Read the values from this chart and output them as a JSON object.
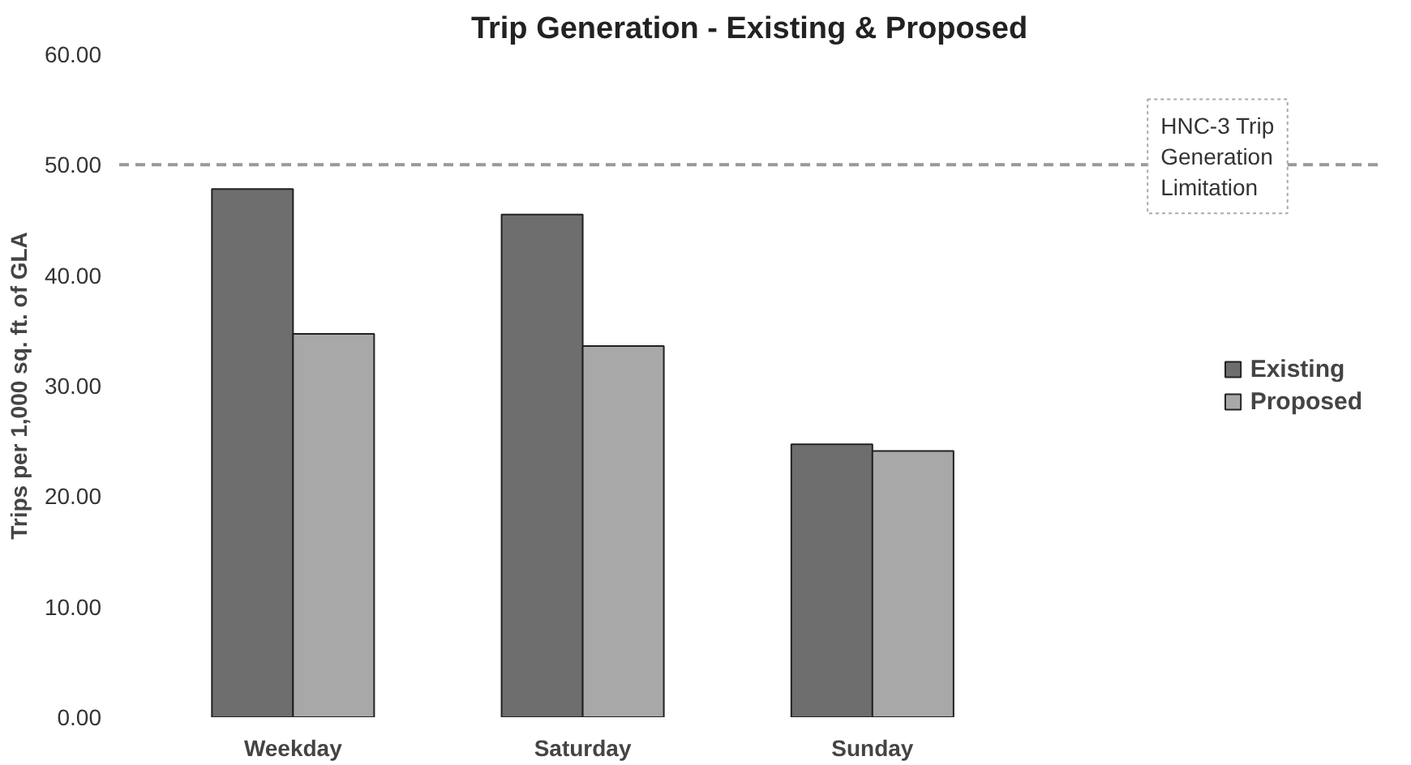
{
  "chart_data": {
    "type": "bar",
    "title": "Trip Generation - Existing & Proposed",
    "ylabel": "Trips per 1,000 sq. ft. of GLA",
    "categories": [
      "Weekday",
      "Saturday",
      "Sunday"
    ],
    "series": [
      {
        "name": "Existing",
        "color": "#6e6e6e",
        "values": [
          47.8,
          45.5,
          24.7
        ]
      },
      {
        "name": "Proposed",
        "color": "#a8a8a8",
        "values": [
          34.7,
          33.6,
          24.1
        ]
      }
    ],
    "ylim": [
      0,
      60
    ],
    "yticks": [
      {
        "value": 0,
        "label": "0.00"
      },
      {
        "value": 10,
        "label": "10.00"
      },
      {
        "value": 20,
        "label": "20.00"
      },
      {
        "value": 30,
        "label": "30.00"
      },
      {
        "value": 40,
        "label": "40.00"
      },
      {
        "value": 50,
        "label": "50.00"
      },
      {
        "value": 60,
        "label": "60.00"
      }
    ],
    "ref_lines": [
      {
        "axis": "y",
        "value": 50,
        "label": "HNC-3 Trip Generation Limitation",
        "color": "#999999",
        "line_style": "dashed"
      }
    ],
    "grid": false,
    "legend": "right"
  }
}
